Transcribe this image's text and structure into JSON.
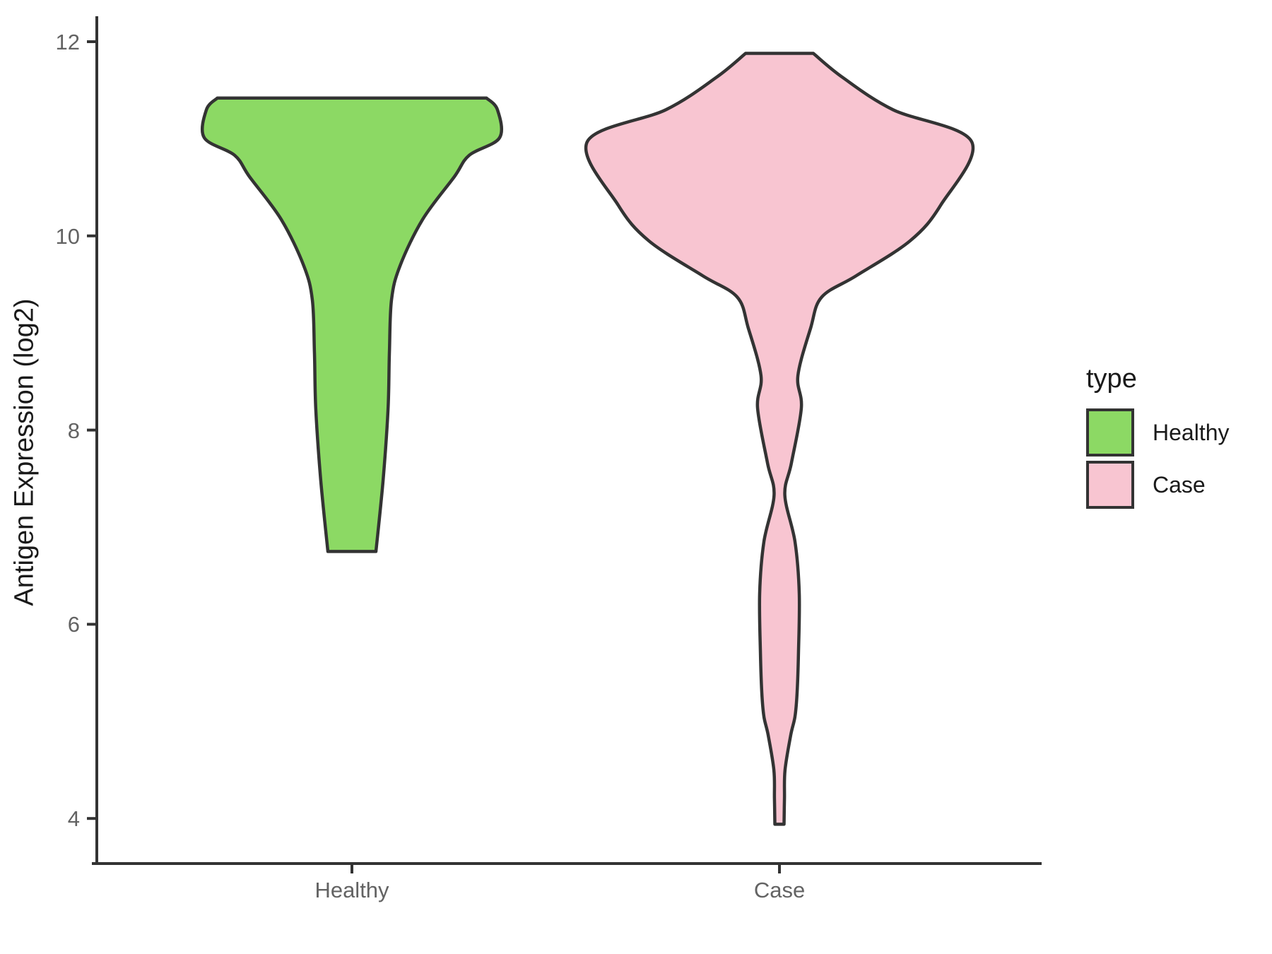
{
  "chart_data": {
    "type": "violin",
    "title": "",
    "xlabel": "",
    "ylabel": "Antigen Expression (log2)",
    "ylim": [
      3.4,
      12.3
    ],
    "grid": false,
    "legend_position": "right",
    "categories": [
      "Healthy",
      "Case"
    ],
    "y_axis": {
      "title": "Antigen Expression (log2)",
      "ticks": [
        {
          "value": 12,
          "label": "12"
        },
        {
          "value": 10,
          "label": "10"
        },
        {
          "value": 8,
          "label": "8"
        },
        {
          "value": 6,
          "label": "6"
        },
        {
          "value": 4,
          "label": "4"
        }
      ]
    },
    "x_axis": {
      "categories": [
        "Healthy",
        "Case"
      ]
    },
    "series": [
      {
        "name": "Healthy",
        "fill": "#8CD964",
        "stroke": "#333333",
        "value_range": [
          6.75,
          11.42
        ],
        "profile": [
          [
            11.42,
            0.7
          ],
          [
            11.3,
            0.757
          ],
          [
            11.01,
            0.768
          ],
          [
            10.83,
            0.61
          ],
          [
            10.61,
            0.533
          ],
          [
            10.17,
            0.368
          ],
          [
            9.69,
            0.25
          ],
          [
            9.34,
            0.206
          ],
          [
            8.79,
            0.195
          ],
          [
            8.21,
            0.188
          ],
          [
            7.48,
            0.162
          ],
          [
            6.75,
            0.125
          ]
        ]
      },
      {
        "name": "Case",
        "fill": "#F8C5D1",
        "stroke": "#333333",
        "value_range": [
          3.94,
          11.88
        ],
        "profile": [
          [
            11.88,
            0.176
          ],
          [
            11.63,
            0.33
          ],
          [
            11.3,
            0.59
          ],
          [
            10.97,
            1.0
          ],
          [
            10.32,
            0.84
          ],
          [
            9.95,
            0.68
          ],
          [
            9.59,
            0.4
          ],
          [
            9.37,
            0.22
          ],
          [
            9.05,
            0.162
          ],
          [
            8.56,
            0.096
          ],
          [
            8.23,
            0.114
          ],
          [
            7.66,
            0.062
          ],
          [
            7.33,
            0.028
          ],
          [
            6.85,
            0.081
          ],
          [
            6.32,
            0.103
          ],
          [
            5.7,
            0.099
          ],
          [
            5.3,
            0.092
          ],
          [
            5.05,
            0.081
          ],
          [
            4.86,
            0.059
          ],
          [
            4.5,
            0.029
          ],
          [
            4.21,
            0.026
          ],
          [
            3.94,
            0.024
          ]
        ]
      }
    ],
    "legend": {
      "title": "type",
      "entries": [
        {
          "label": "Healthy",
          "color": "#8CD964"
        },
        {
          "label": "Case",
          "color": "#F8C5D1"
        }
      ]
    }
  }
}
